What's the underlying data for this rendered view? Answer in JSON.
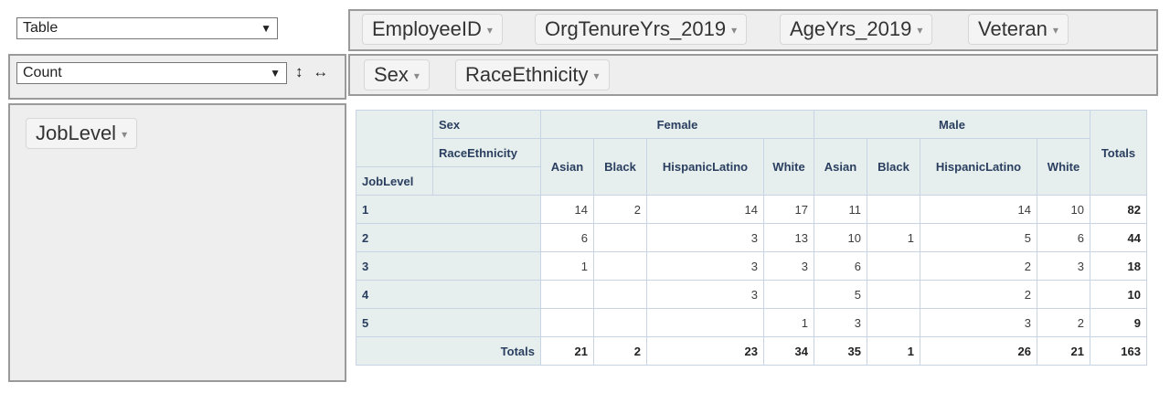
{
  "renderer": {
    "value": "Table"
  },
  "aggregator": {
    "value": "Count"
  },
  "controls": {
    "row_order_icon": "↕",
    "col_order_icon": "↔",
    "caret": "▼",
    "pill_tri": "▾"
  },
  "unused_attrs": [
    "EmployeeID",
    "OrgTenureYrs_2019",
    "AgeYrs_2019",
    "Veteran"
  ],
  "col_attrs": [
    "Sex",
    "RaceEthnicity"
  ],
  "row_attrs": [
    "JobLevel"
  ],
  "table": {
    "col_attr1_label": "Sex",
    "col_attr2_label": "RaceEthnicity",
    "row_attr_label": "JobLevel",
    "groups": [
      "Female",
      "Male"
    ],
    "subcols": [
      "Asian",
      "Black",
      "HispanicLatino",
      "White",
      "Asian",
      "Black",
      "HispanicLatino",
      "White"
    ],
    "totals_label": "Totals",
    "rows": [
      {
        "label": "1",
        "values": [
          "14",
          "2",
          "14",
          "17",
          "11",
          "",
          "14",
          "10"
        ],
        "total": "82"
      },
      {
        "label": "2",
        "values": [
          "6",
          "",
          "3",
          "13",
          "10",
          "1",
          "5",
          "6"
        ],
        "total": "44"
      },
      {
        "label": "3",
        "values": [
          "1",
          "",
          "3",
          "3",
          "6",
          "",
          "2",
          "3"
        ],
        "total": "18"
      },
      {
        "label": "4",
        "values": [
          "",
          "",
          "3",
          "",
          "5",
          "",
          "2",
          ""
        ],
        "total": "10"
      },
      {
        "label": "5",
        "values": [
          "",
          "",
          "",
          "1",
          "3",
          "",
          "3",
          "2"
        ],
        "total": "9"
      }
    ],
    "col_totals": [
      "21",
      "2",
      "23",
      "34",
      "35",
      "1",
      "26",
      "21"
    ],
    "grand_total": "163"
  }
}
